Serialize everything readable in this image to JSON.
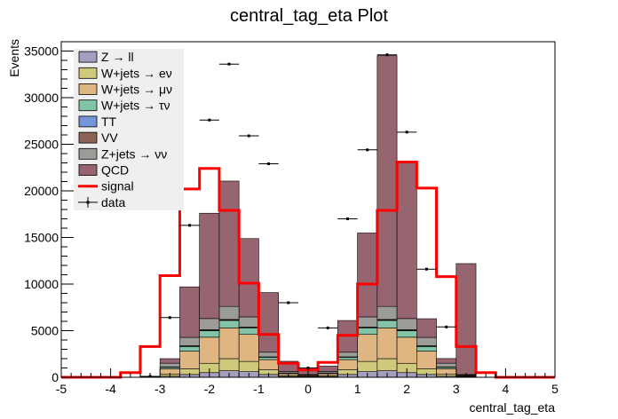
{
  "chart_data": {
    "type": "bar",
    "title": "central_tag_eta Plot",
    "xlabel": "central_tag_eta",
    "ylabel": "Events",
    "xlim": [
      -5,
      5
    ],
    "ylim": [
      0,
      36000
    ],
    "x_ticks": [
      "-5",
      "-4",
      "-3",
      "-2",
      "-1",
      "0",
      "1",
      "2",
      "3",
      "4",
      "5"
    ],
    "y_ticks": [
      "0",
      "5000",
      "10000",
      "15000",
      "20000",
      "25000",
      "30000",
      "35000"
    ],
    "grid": false,
    "legend_position": "top-left",
    "bin_edges": [
      -5.0,
      -4.6,
      -4.2,
      -3.8,
      -3.4,
      -3.0,
      -2.6,
      -2.2,
      -1.8,
      -1.4,
      -1.0,
      -0.6,
      -0.2,
      0.2,
      0.6,
      1.0,
      1.4,
      1.8,
      2.2,
      2.6,
      3.0,
      3.4,
      3.8,
      4.2,
      4.6,
      5.0
    ],
    "stack": [
      {
        "name": "Z → ll",
        "color": "#a49ebf",
        "values": [
          0,
          0,
          0,
          0,
          0,
          120,
          300,
          500,
          700,
          600,
          300,
          80,
          40,
          80,
          300,
          600,
          700,
          500,
          300,
          120,
          40,
          0,
          0,
          0,
          0
        ]
      },
      {
        "name": "W+jets → eν",
        "color": "#cfc97c",
        "values": [
          0,
          0,
          0,
          0,
          0,
          200,
          600,
          1000,
          1300,
          1100,
          500,
          120,
          60,
          120,
          500,
          1100,
          1300,
          1000,
          600,
          200,
          60,
          0,
          0,
          0,
          0
        ]
      },
      {
        "name": "W+jets → μν",
        "color": "#dfb582",
        "values": [
          0,
          0,
          0,
          0,
          0,
          600,
          1900,
          2800,
          3300,
          2900,
          1100,
          200,
          100,
          200,
          1100,
          2900,
          3300,
          2800,
          1900,
          600,
          100,
          0,
          0,
          0,
          0
        ]
      },
      {
        "name": "W+jets → τν",
        "color": "#83c3a6",
        "values": [
          0,
          0,
          0,
          0,
          0,
          150,
          500,
          700,
          800,
          700,
          250,
          50,
          20,
          50,
          250,
          700,
          800,
          700,
          500,
          150,
          20,
          0,
          0,
          0,
          0
        ]
      },
      {
        "name": "TT",
        "color": "#7496d8",
        "values": [
          0,
          0,
          0,
          0,
          0,
          10,
          20,
          30,
          30,
          20,
          10,
          5,
          5,
          5,
          10,
          20,
          30,
          30,
          20,
          10,
          5,
          0,
          0,
          0,
          0
        ]
      },
      {
        "name": "VV",
        "color": "#8a6356",
        "values": [
          0,
          0,
          0,
          0,
          0,
          30,
          60,
          70,
          70,
          60,
          30,
          10,
          5,
          10,
          30,
          60,
          70,
          70,
          60,
          30,
          10,
          0,
          0,
          0,
          0
        ]
      },
      {
        "name": "Z+jets → νν",
        "color": "#9b9b98",
        "values": [
          0,
          0,
          0,
          0,
          0,
          400,
          900,
          1200,
          1400,
          1100,
          500,
          150,
          60,
          150,
          500,
          1100,
          1400,
          1200,
          900,
          400,
          60,
          0,
          0,
          0,
          0
        ]
      },
      {
        "name": "QCD",
        "color": "#966570",
        "values": [
          0,
          0,
          0,
          0,
          0,
          490,
          5420,
          11300,
          13450,
          8400,
          6400,
          1100,
          400,
          580,
          3400,
          9000,
          26900,
          16900,
          2000,
          500,
          11900,
          0,
          0,
          0,
          0
        ]
      }
    ],
    "signal": {
      "name": "signal",
      "color": "#ff0000",
      "values": [
        0,
        0,
        0,
        500,
        3300,
        10900,
        20200,
        22400,
        17900,
        10100,
        4600,
        1500,
        800,
        1600,
        4500,
        10000,
        17900,
        23100,
        20300,
        10800,
        3300,
        500,
        0,
        0,
        0
      ]
    },
    "data": {
      "name": "data",
      "color": "#000000",
      "values": [
        0,
        0,
        0,
        0,
        100,
        6400,
        16300,
        27600,
        33600,
        25900,
        22900,
        8000,
        1000,
        5300,
        17000,
        24400,
        34600,
        26300,
        11600,
        5400,
        100,
        0,
        0,
        0,
        0
      ]
    }
  }
}
